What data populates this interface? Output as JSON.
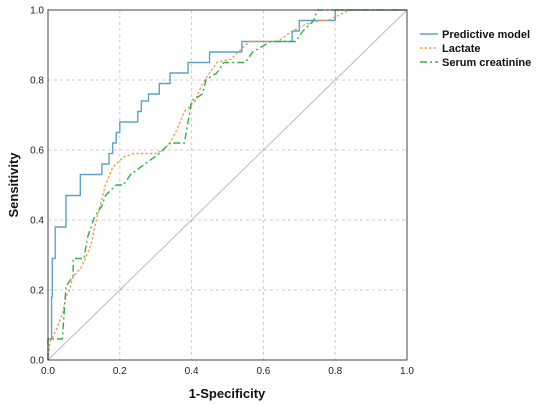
{
  "chart_data": {
    "type": "line",
    "xlabel": "1-Specificity",
    "ylabel": "Sensitivity",
    "xlim": [
      0,
      1
    ],
    "ylim": [
      0,
      1
    ],
    "x_ticks": [
      "0.0",
      "0.2",
      "0.4",
      "0.6",
      "0.8",
      "1.0"
    ],
    "y_ticks": [
      "0.0",
      "0.2",
      "0.4",
      "0.6",
      "0.8",
      "1.0"
    ],
    "grid": true,
    "legend_position": "top-right",
    "colors": {
      "predictive": "#5ba3c8",
      "lactate": "#f0a04b",
      "creatinine": "#2db34a",
      "reference": "#bbbbbb"
    },
    "series": [
      {
        "name": "Predictive model",
        "style": "solid",
        "points": [
          [
            0,
            0
          ],
          [
            0,
            0.06
          ],
          [
            0.01,
            0.06
          ],
          [
            0.01,
            0.18
          ],
          [
            0.012,
            0.18
          ],
          [
            0.012,
            0.29
          ],
          [
            0.02,
            0.29
          ],
          [
            0.02,
            0.38
          ],
          [
            0.05,
            0.38
          ],
          [
            0.05,
            0.47
          ],
          [
            0.09,
            0.47
          ],
          [
            0.09,
            0.53
          ],
          [
            0.15,
            0.53
          ],
          [
            0.15,
            0.56
          ],
          [
            0.17,
            0.56
          ],
          [
            0.17,
            0.59
          ],
          [
            0.18,
            0.59
          ],
          [
            0.18,
            0.62
          ],
          [
            0.19,
            0.62
          ],
          [
            0.19,
            0.65
          ],
          [
            0.2,
            0.65
          ],
          [
            0.2,
            0.68
          ],
          [
            0.25,
            0.68
          ],
          [
            0.25,
            0.71
          ],
          [
            0.26,
            0.71
          ],
          [
            0.26,
            0.74
          ],
          [
            0.28,
            0.74
          ],
          [
            0.28,
            0.76
          ],
          [
            0.31,
            0.76
          ],
          [
            0.31,
            0.79
          ],
          [
            0.34,
            0.79
          ],
          [
            0.34,
            0.82
          ],
          [
            0.39,
            0.82
          ],
          [
            0.39,
            0.85
          ],
          [
            0.45,
            0.85
          ],
          [
            0.45,
            0.88
          ],
          [
            0.54,
            0.88
          ],
          [
            0.54,
            0.91
          ],
          [
            0.68,
            0.91
          ],
          [
            0.68,
            0.94
          ],
          [
            0.7,
            0.94
          ],
          [
            0.7,
            0.97
          ],
          [
            0.8,
            0.97
          ],
          [
            0.8,
            1.0
          ],
          [
            1.0,
            1.0
          ]
        ]
      },
      {
        "name": "Lactate",
        "style": "dotted",
        "points": [
          [
            0,
            0
          ],
          [
            0.005,
            0.05
          ],
          [
            0.02,
            0.08
          ],
          [
            0.04,
            0.13
          ],
          [
            0.05,
            0.18
          ],
          [
            0.06,
            0.2
          ],
          [
            0.07,
            0.24
          ],
          [
            0.09,
            0.26
          ],
          [
            0.1,
            0.28
          ],
          [
            0.12,
            0.33
          ],
          [
            0.13,
            0.38
          ],
          [
            0.14,
            0.42
          ],
          [
            0.16,
            0.5
          ],
          [
            0.18,
            0.55
          ],
          [
            0.21,
            0.58
          ],
          [
            0.24,
            0.59
          ],
          [
            0.3,
            0.59
          ],
          [
            0.32,
            0.6
          ],
          [
            0.34,
            0.62
          ],
          [
            0.36,
            0.66
          ],
          [
            0.38,
            0.71
          ],
          [
            0.41,
            0.74
          ],
          [
            0.43,
            0.79
          ],
          [
            0.45,
            0.82
          ],
          [
            0.47,
            0.85
          ],
          [
            0.51,
            0.86
          ],
          [
            0.53,
            0.88
          ],
          [
            0.56,
            0.91
          ],
          [
            0.64,
            0.91
          ],
          [
            0.68,
            0.94
          ],
          [
            0.72,
            0.96
          ],
          [
            0.76,
            0.97
          ],
          [
            0.78,
            0.97
          ],
          [
            0.8,
            0.98
          ],
          [
            0.84,
            1.0
          ],
          [
            1.0,
            1.0
          ]
        ]
      },
      {
        "name": "Serum creatinine",
        "style": "dashdot",
        "points": [
          [
            0,
            0
          ],
          [
            0,
            0.06
          ],
          [
            0.04,
            0.06
          ],
          [
            0.05,
            0.21
          ],
          [
            0.07,
            0.24
          ],
          [
            0.07,
            0.29
          ],
          [
            0.1,
            0.29
          ],
          [
            0.11,
            0.35
          ],
          [
            0.13,
            0.41
          ],
          [
            0.15,
            0.44
          ],
          [
            0.16,
            0.47
          ],
          [
            0.19,
            0.5
          ],
          [
            0.21,
            0.5
          ],
          [
            0.23,
            0.53
          ],
          [
            0.27,
            0.56
          ],
          [
            0.31,
            0.59
          ],
          [
            0.34,
            0.62
          ],
          [
            0.38,
            0.62
          ],
          [
            0.39,
            0.68
          ],
          [
            0.4,
            0.74
          ],
          [
            0.43,
            0.76
          ],
          [
            0.44,
            0.8
          ],
          [
            0.47,
            0.82
          ],
          [
            0.49,
            0.85
          ],
          [
            0.55,
            0.85
          ],
          [
            0.57,
            0.88
          ],
          [
            0.62,
            0.91
          ],
          [
            0.69,
            0.91
          ],
          [
            0.71,
            0.94
          ],
          [
            0.74,
            0.97
          ],
          [
            0.75,
            1.0
          ],
          [
            1.0,
            1.0
          ]
        ]
      }
    ]
  }
}
